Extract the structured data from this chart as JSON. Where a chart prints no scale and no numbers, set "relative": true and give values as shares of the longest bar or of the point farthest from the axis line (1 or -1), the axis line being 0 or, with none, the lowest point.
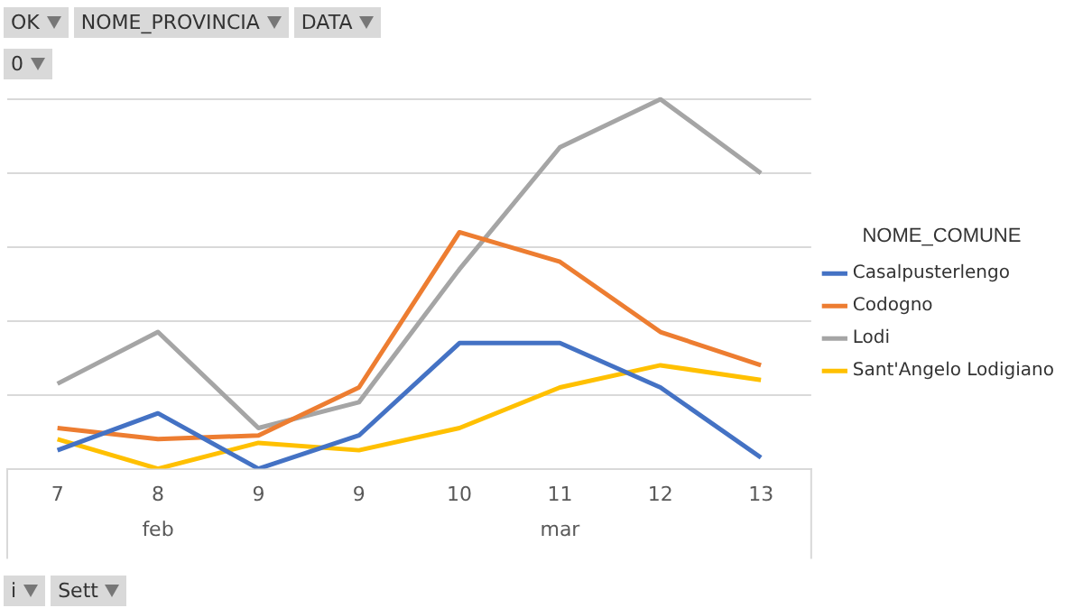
{
  "chart_data": {
    "type": "line",
    "relative": true,
    "grid": "y",
    "legend": "right",
    "legend_title": "NOME_COMUNE",
    "marker": "none",
    "line_style": "solid",
    "categories": [
      "7",
      "8",
      "9",
      "9",
      "10",
      "11",
      "12",
      "13"
    ],
    "series": [
      {
        "name": "Casalpusterlengo",
        "color": "#4472c4",
        "values": [
          0.05,
          0.15,
          0,
          0.09,
          0.34,
          0.34,
          0.22,
          0.03
        ]
      },
      {
        "name": "Codogno",
        "color": "#ed7d31",
        "values": [
          0.11,
          0.08,
          0.09,
          0.22,
          0.64,
          0.56,
          0.37,
          0.28
        ]
      },
      {
        "name": "Lodi",
        "color": "#a5a5a5",
        "values": [
          0.23,
          0.37,
          0.11,
          0.18,
          0.54,
          0.87,
          1,
          0.8
        ]
      },
      {
        "name": "Sant'Angelo Lodigiano",
        "color": "#ffc000",
        "values": [
          0.08,
          0,
          0.07,
          0.05,
          0.11,
          0.22,
          0.28,
          0.24
        ]
      }
    ],
    "annotations": [
      "feb",
      "mar",
      "OK",
      "NOME_PROVINCIA",
      "DATA",
      "0",
      "i",
      "Sett"
    ]
  }
}
